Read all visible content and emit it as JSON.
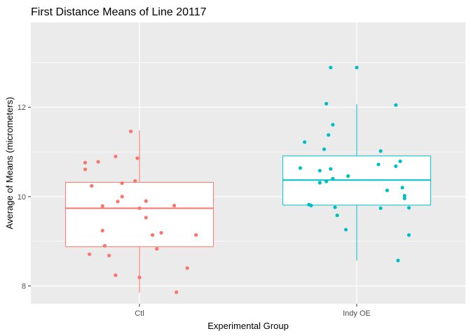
{
  "chart_data": {
    "type": "boxplot",
    "title": "First Distance Means of Line 20117",
    "xlabel": "Experimental Group",
    "ylabel": "Average of Means (micrometers)",
    "ylim": [
      7.6,
      13.9
    ],
    "y_ticks": [
      8,
      10,
      12
    ],
    "grid": true,
    "legend": "none",
    "background": "#ebebeb",
    "grid_color": "#ffffff",
    "categories": [
      "Ctl",
      "Indy OE"
    ],
    "series": [
      {
        "category": "Ctl",
        "color": "#f8766d",
        "box": {
          "lower_whisker": 7.85,
          "q1": 8.88,
          "median": 9.74,
          "q3": 10.32,
          "upper_whisker": 11.48
        },
        "points": [
          {
            "x": -0.25,
            "y": 10.76
          },
          {
            "x": -0.25,
            "y": 10.61
          },
          {
            "x": -0.19,
            "y": 10.78
          },
          {
            "x": -0.22,
            "y": 10.24
          },
          {
            "x": -0.11,
            "y": 10.9
          },
          {
            "x": -0.04,
            "y": 11.46
          },
          {
            "x": -0.01,
            "y": 10.86
          },
          {
            "x": -0.08,
            "y": 10.3
          },
          {
            "x": -0.02,
            "y": 10.35
          },
          {
            "x": -0.08,
            "y": 10.0
          },
          {
            "x": -0.1,
            "y": 9.89
          },
          {
            "x": 0.03,
            "y": 9.9
          },
          {
            "x": 0.16,
            "y": 9.8
          },
          {
            "x": -0.17,
            "y": 9.79
          },
          {
            "x": 0.0,
            "y": 9.74
          },
          {
            "x": 0.03,
            "y": 9.53
          },
          {
            "x": -0.17,
            "y": 9.24
          },
          {
            "x": 0.06,
            "y": 9.14
          },
          {
            "x": 0.1,
            "y": 9.19
          },
          {
            "x": 0.26,
            "y": 9.14
          },
          {
            "x": -0.16,
            "y": 8.9
          },
          {
            "x": 0.08,
            "y": 8.83
          },
          {
            "x": -0.23,
            "y": 8.71
          },
          {
            "x": -0.14,
            "y": 8.68
          },
          {
            "x": 0.22,
            "y": 8.4
          },
          {
            "x": -0.11,
            "y": 8.24
          },
          {
            "x": 0.0,
            "y": 8.19
          },
          {
            "x": 0.17,
            "y": 7.86
          }
        ]
      },
      {
        "category": "Indy OE",
        "color": "#00bfc4",
        "box": {
          "lower_whisker": 8.57,
          "q1": 9.81,
          "median": 10.37,
          "q3": 10.91,
          "upper_whisker": 12.07
        },
        "points": [
          {
            "x": -0.12,
            "y": 12.89
          },
          {
            "x": 0.0,
            "y": 12.89
          },
          {
            "x": -0.14,
            "y": 12.08
          },
          {
            "x": 0.18,
            "y": 12.05
          },
          {
            "x": -0.11,
            "y": 11.61
          },
          {
            "x": -0.13,
            "y": 11.38
          },
          {
            "x": -0.24,
            "y": 11.22
          },
          {
            "x": -0.15,
            "y": 11.06
          },
          {
            "x": 0.11,
            "y": 11.02
          },
          {
            "x": 0.2,
            "y": 10.79
          },
          {
            "x": 0.1,
            "y": 10.72
          },
          {
            "x": 0.18,
            "y": 10.68
          },
          {
            "x": -0.26,
            "y": 10.64
          },
          {
            "x": -0.17,
            "y": 10.58
          },
          {
            "x": -0.12,
            "y": 10.62
          },
          {
            "x": -0.04,
            "y": 10.46
          },
          {
            "x": -0.17,
            "y": 10.31
          },
          {
            "x": -0.14,
            "y": 10.34
          },
          {
            "x": -0.11,
            "y": 10.4
          },
          {
            "x": 0.21,
            "y": 10.2
          },
          {
            "x": 0.14,
            "y": 10.14
          },
          {
            "x": 0.22,
            "y": 10.02
          },
          {
            "x": 0.22,
            "y": 9.96
          },
          {
            "x": -0.22,
            "y": 9.82
          },
          {
            "x": -0.21,
            "y": 9.8
          },
          {
            "x": -0.1,
            "y": 9.76
          },
          {
            "x": 0.11,
            "y": 9.74
          },
          {
            "x": 0.24,
            "y": 9.75
          },
          {
            "x": -0.09,
            "y": 9.58
          },
          {
            "x": -0.05,
            "y": 9.26
          },
          {
            "x": 0.24,
            "y": 9.14
          },
          {
            "x": 0.19,
            "y": 8.57
          }
        ]
      }
    ]
  }
}
